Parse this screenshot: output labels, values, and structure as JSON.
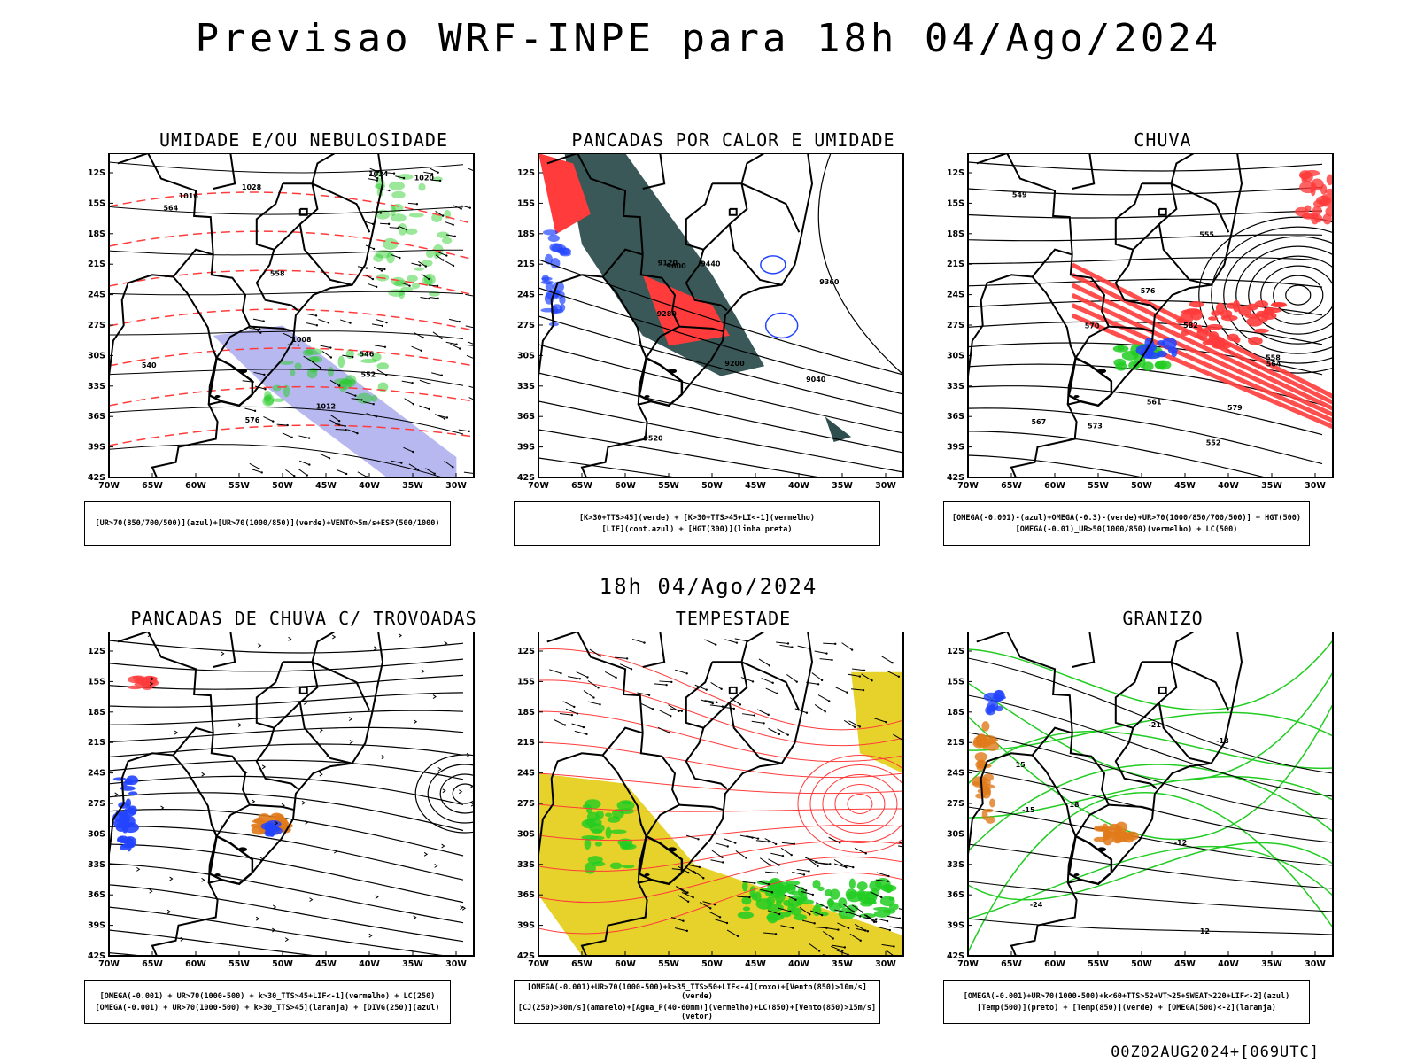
{
  "header": {
    "title": "Previsao WRF-INPE  para 18h 04/Ago/2024",
    "mid_title": "18h 04/Ago/2024",
    "footer": "00Z02AUG2024+[069UTC]"
  },
  "axes": {
    "lat_labels": [
      "12S",
      "15S",
      "18S",
      "21S",
      "24S",
      "27S",
      "30S",
      "33S",
      "36S",
      "39S",
      "42S"
    ],
    "lon_labels": [
      "70W",
      "65W",
      "60W",
      "55W",
      "50W",
      "45W",
      "40W",
      "35W",
      "30W"
    ]
  },
  "panels": [
    {
      "id": "umidade",
      "title": "UMIDADE E/OU NEBULOSIDADE",
      "legend": [
        "[UR>70(850/700/500)](azul)+[UR>70(1000/850)](verde)+VENTO>5m/s+ESP(500/1000)"
      ],
      "contour_labels": [
        "1012",
        "1016",
        "1020",
        "1024",
        "1028",
        "1008",
        "576",
        "564",
        "558",
        "552",
        "546",
        "540"
      ]
    },
    {
      "id": "pancadas-calor",
      "title": "PANCADAS POR CALOR E UMIDADE",
      "legend": [
        "[K>30+TTS>45](verde) + [K>30+TTS>45+LI<-1](vermelho)",
        "[LIF](cont.azul) + [HGT(300)](linha preta)"
      ],
      "contour_labels": [
        "9600",
        "9520",
        "9440",
        "9360",
        "9280",
        "9200",
        "9120",
        "9040"
      ]
    },
    {
      "id": "chuva",
      "title": "CHUVA",
      "legend": [
        "[OMEGA(-0.001)-(azul)+OMEGA(-0.3)-(verde)+UR>70(1000/850/700/500)] + HGT(500)",
        "[OMEGA(-0.01)_UR>50(1000/850)(vermelho) + LC(500)"
      ],
      "contour_labels": [
        "582",
        "579",
        "576",
        "573",
        "570",
        "567",
        "564",
        "561",
        "558",
        "555",
        "552",
        "549"
      ]
    },
    {
      "id": "trovoadas",
      "title": "PANCADAS DE CHUVA C/ TROVOADAS",
      "legend": [
        "[OMEGA(-0.001) + UR>70(1000-500) + k>30_TTS>45+LIF<-1](vermelho) + LC(250)",
        "[OMEGA(-0.001) + UR>70(1000-500) + k>30_TTS>45](laranja) + [DIVG(250)](azul)"
      ],
      "contour_labels": []
    },
    {
      "id": "tempestade",
      "title": "TEMPESTADE",
      "legend": [
        "[OMEGA(-0.001)+UR>70(1000-500)+k>35_TTS>50+LIF<-4](roxo)+[Vento(850)>10m/s](verde)",
        "[CJ(250)>30m/s](amarelo)+[Agua_P(40-60mm)](vermelho)+LC(850)+[Vento(850)>15m/s](vetor)"
      ],
      "contour_labels": []
    },
    {
      "id": "granizo",
      "title": "GRANIZO",
      "legend": [
        "[OMEGA(-0.001)+UR>70(1000-500)+k<60+TTS>52+VT>25+SWEAT>220+LIF<-2](azul)",
        "[Temp(500)](preto) + [Temp(850)](verde) + [OMEGA(500)<-2](laranja)"
      ],
      "contour_labels": [
        "-12",
        "-15",
        "-18",
        "-21",
        "-24",
        "12",
        "15",
        "18"
      ]
    }
  ],
  "colors": {
    "red": "#ff3b3b",
    "green": "#22cc22",
    "blue": "#2244ff",
    "lightblue": "#b0b0f0",
    "darkteal": "#2f4f4f",
    "yellow": "#e6d22a",
    "orange": "#e07a1a"
  }
}
